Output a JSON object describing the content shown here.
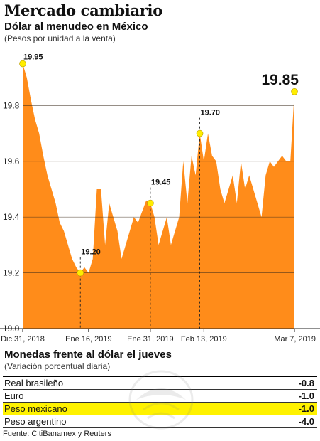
{
  "header": {
    "title": "Mercado cambiario",
    "subtitle": "Dólar al menudeo en México",
    "units": "(Pesos por unidad a la venta)"
  },
  "chart_data": {
    "type": "area",
    "title": "Dólar al menudeo en México",
    "ylabel": "(Pesos por unidad a la venta)",
    "ylim": [
      19.0,
      20.0
    ],
    "yticks": [
      "19.0",
      "19.2",
      "19.4",
      "19.6",
      "19.8"
    ],
    "xtick_labels": [
      "Dic 31, 2018",
      "Ene 16, 2019",
      "Ene 31, 2019",
      "Feb 13, 2019",
      "Mar 7, 2019"
    ],
    "xtick_index": [
      0,
      16,
      31,
      44,
      66
    ],
    "values": [
      19.95,
      19.9,
      19.82,
      19.75,
      19.7,
      19.62,
      19.55,
      19.5,
      19.45,
      19.38,
      19.35,
      19.3,
      19.25,
      19.22,
      19.2,
      19.22,
      19.2,
      19.25,
      19.5,
      19.5,
      19.3,
      19.45,
      19.4,
      19.35,
      19.25,
      19.3,
      19.35,
      19.4,
      19.38,
      19.42,
      19.46,
      19.45,
      19.4,
      19.3,
      19.35,
      19.4,
      19.3,
      19.35,
      19.4,
      19.6,
      19.45,
      19.62,
      19.55,
      19.7,
      19.6,
      19.7,
      19.62,
      19.6,
      19.5,
      19.45,
      19.5,
      19.55,
      19.45,
      19.6,
      19.5,
      19.55,
      19.5,
      19.45,
      19.4,
      19.55,
      19.6,
      19.58,
      19.6,
      19.62,
      19.6,
      19.6,
      19.85
    ],
    "annotations": [
      {
        "index": 0,
        "value": 19.95,
        "label": "19.95"
      },
      {
        "index": 14,
        "value": 19.2,
        "label": "19.20"
      },
      {
        "index": 31,
        "value": 19.45,
        "label": "19.45"
      },
      {
        "index": 43,
        "value": 19.7,
        "label": "19.70"
      },
      {
        "index": 66,
        "value": 19.85,
        "label": "19.85"
      }
    ],
    "fill_color": "#ff8c1a",
    "marker_color": "#ffed00",
    "grid": true
  },
  "currencies": {
    "title": "Monedas frente al dólar el jueves",
    "units": "(Variación porcentual diaria)",
    "rows": [
      {
        "name": "Real brasileño",
        "value": "-0.8",
        "highlight": false
      },
      {
        "name": "Euro",
        "value": "-1.0",
        "highlight": false
      },
      {
        "name": "Peso mexicano",
        "value": "-1.0",
        "highlight": true
      },
      {
        "name": "Peso argentino",
        "value": "-4.0",
        "highlight": false
      }
    ],
    "highlight_color": "#fff200"
  },
  "source": "Fuente: CitiBanamex y Reuters"
}
